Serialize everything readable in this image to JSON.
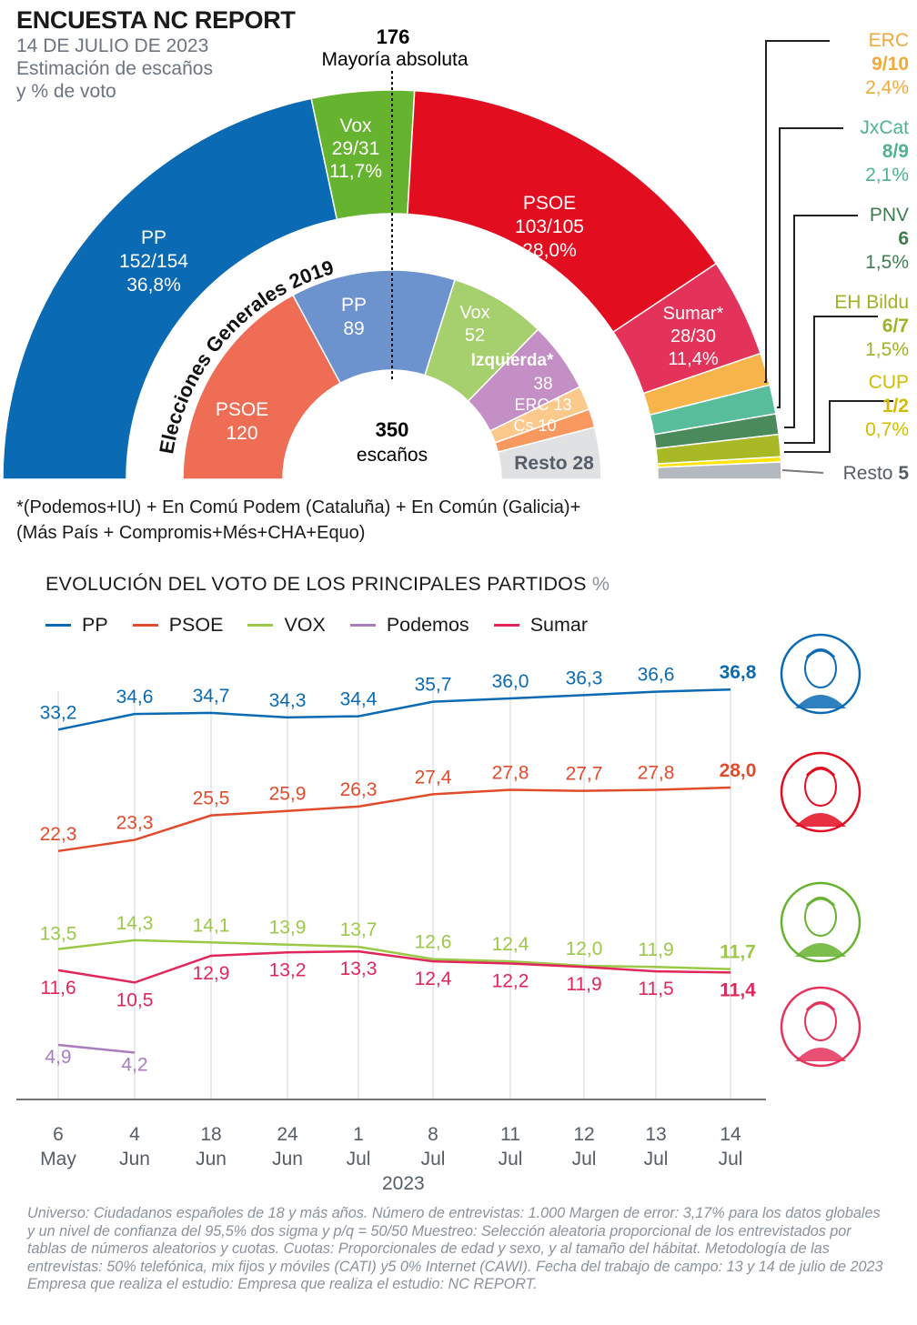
{
  "header": {
    "title": "ENCUESTA NC REPORT",
    "date": "14 DE JULIO DE 2023",
    "subtitle_line1": "Estimación de escaños",
    "subtitle_line2": "y % de voto"
  },
  "majority": {
    "number": "176",
    "label": "Mayoría absoluta"
  },
  "center": {
    "number": "350",
    "label": "escaños"
  },
  "inner_caption": "Elecciones Generales 2019",
  "colors": {
    "pp": "#0a6ab3",
    "vox": "#65b32e",
    "psoe": "#e30d20",
    "sumar": "#e4335a",
    "erc": "#f7b44b",
    "jxcat": "#58bd9b",
    "pnv": "#4b8a5b",
    "bildu": "#a9b926",
    "cup": "#ffe40a",
    "resto": "#b4b9bf",
    "inner_psoe": "#ef6d55",
    "inner_pp": "#6d93ce",
    "inner_vox": "#a6cf6d",
    "inner_izq": "#c38fc4",
    "inner_erc": "#fcc98c",
    "inner_cs": "#f9995f",
    "inner_resto": "#dfe1e3",
    "podemos": "#a97cbf"
  },
  "outer_arc": {
    "parties": [
      {
        "key": "pp",
        "name": "PP",
        "seats": "152/154",
        "pct": "36,8%",
        "mid": 153
      },
      {
        "key": "vox",
        "name": "Vox",
        "seats": "29/31",
        "pct": "11,7%",
        "mid": 30
      },
      {
        "key": "psoe",
        "name": "PSOE",
        "seats": "103/105",
        "pct": "28,0%",
        "mid": 104
      },
      {
        "key": "sumar",
        "name": "Sumar*",
        "seats": "28/30",
        "pct": "11,4%",
        "mid": 29
      },
      {
        "key": "erc",
        "name": "ERC",
        "seats": "9/10",
        "pct": "2,4%",
        "mid": 9.5
      },
      {
        "key": "jxcat",
        "name": "JxCat",
        "seats": "8/9",
        "pct": "2,1%",
        "mid": 8.5
      },
      {
        "key": "pnv",
        "name": "PNV",
        "seats": "6",
        "pct": "1,5%",
        "mid": 6
      },
      {
        "key": "bildu",
        "name": "EH Bildu",
        "seats": "6/7",
        "pct": "1,5%",
        "mid": 6.5
      },
      {
        "key": "cup",
        "name": "CUP",
        "seats": "1/2",
        "pct": "0,7%",
        "mid": 1.5
      },
      {
        "key": "resto",
        "name": "Resto",
        "seats": "5",
        "pct": "",
        "mid": 5
      }
    ]
  },
  "inner_arc": {
    "parties": [
      {
        "key": "inner_psoe",
        "name": "PSOE",
        "seats": 120
      },
      {
        "key": "inner_pp",
        "name": "PP",
        "seats": 89
      },
      {
        "key": "inner_vox",
        "name": "Vox",
        "seats": 52
      },
      {
        "key": "inner_izq",
        "name": "Izquierda*",
        "seats": 38
      },
      {
        "key": "inner_erc",
        "name": "ERC",
        "seats": 13
      },
      {
        "key": "inner_cs",
        "name": "Cs",
        "seats": 10
      },
      {
        "key": "inner_resto",
        "name": "Resto",
        "seats": 28
      }
    ],
    "labels": {
      "psoe": [
        "PSOE",
        "120"
      ],
      "pp": [
        "PP",
        "89"
      ],
      "vox": [
        "Vox",
        "52"
      ],
      "izq": [
        "Izquierda*",
        "38"
      ],
      "erc": "ERC 13",
      "cs": "Cs 10",
      "resto": "Resto 28"
    }
  },
  "notes": {
    "line1": "*(Podemos+IU) + En Comú Podem (Cataluña) + En Común (Galicia)+",
    "line2": "(Más País + Compromis+Més+CHA+Equo)"
  },
  "chart_data": {
    "type": "line",
    "title": "EVOLUCIÓN DEL VOTO DE LOS PRINCIPALES PARTIDOS",
    "unit": "%",
    "x": [
      [
        "6",
        "May"
      ],
      [
        "4",
        "Jun"
      ],
      [
        "18",
        "Jun"
      ],
      [
        "24",
        "Jun"
      ],
      [
        "1",
        "Jul"
      ],
      [
        "8",
        "Jul"
      ],
      [
        "11",
        "Jul"
      ],
      [
        "12",
        "Jul"
      ],
      [
        "13",
        "Jul"
      ],
      [
        "14",
        "Jul"
      ]
    ],
    "xlabel": "2023",
    "series": [
      {
        "name": "PP",
        "color": "#0a6ab3",
        "values": [
          33.2,
          34.6,
          34.7,
          34.3,
          34.4,
          35.7,
          36.0,
          36.3,
          36.6,
          36.8
        ]
      },
      {
        "name": "PSOE",
        "color": "#e04b2c",
        "values": [
          22.3,
          23.3,
          25.5,
          25.9,
          26.3,
          27.4,
          27.8,
          27.7,
          27.8,
          28.0
        ]
      },
      {
        "name": "VOX",
        "color": "#9bc847",
        "values": [
          13.5,
          14.3,
          14.1,
          13.9,
          13.7,
          12.6,
          12.4,
          12.0,
          11.9,
          11.7
        ]
      },
      {
        "name": "Podemos",
        "color": "#a97cbf",
        "values": [
          4.9,
          4.2,
          null,
          null,
          null,
          null,
          null,
          null,
          null,
          null
        ]
      },
      {
        "name": "Sumar",
        "color": "#e0265a",
        "values": [
          11.6,
          10.5,
          12.9,
          13.2,
          13.3,
          12.4,
          12.2,
          11.9,
          11.5,
          11.4
        ]
      }
    ],
    "labels": {
      "PP": [
        "33,2",
        "34,6",
        "34,7",
        "34,3",
        "34,4",
        "35,7",
        "36,0",
        "36,3",
        "36,6",
        "36,8"
      ],
      "PSOE": [
        "22,3",
        "23,3",
        "25,5",
        "25,9",
        "26,3",
        "27,4",
        "27,8",
        "27,7",
        "27,8",
        "28,0"
      ],
      "VOX": [
        "13,5",
        "14,3",
        "14,1",
        "13,9",
        "13,7",
        "12,6",
        "12,4",
        "12,0",
        "11,9",
        "11,7"
      ],
      "Podemos": [
        "4,9",
        "4,2"
      ],
      "Sumar": [
        "11,6",
        "10,5",
        "12,9",
        "13,2",
        "13,3",
        "12,4",
        "12,2",
        "11,9",
        "11,5",
        "11,4"
      ]
    },
    "grid": "vertical"
  },
  "footer": "Universo: Ciudadanos españoles de 18 y más años. Número de entrevistas: 1.000 Margen de error: 3,17% para los datos globales y un nivel de confianza del 95,5% dos sigma y p/q = 50/50 Muestreo: Selección aleatoria proporcional de los entrevistados por tablas de números aleatorios y cuotas. Cuotas: Proporcionales de edad y sexo, y al tamaño del hábitat. Metodología de las entrevistas: 50% telefónica, mix fijos y móviles (CATI) y5 0% Internet (CAWI). Fecha del trabajo de campo: 13 y 14 de julio de 2023 Empresa que realiza el estudio: Empresa que realiza el estudio: NC REPORT."
}
